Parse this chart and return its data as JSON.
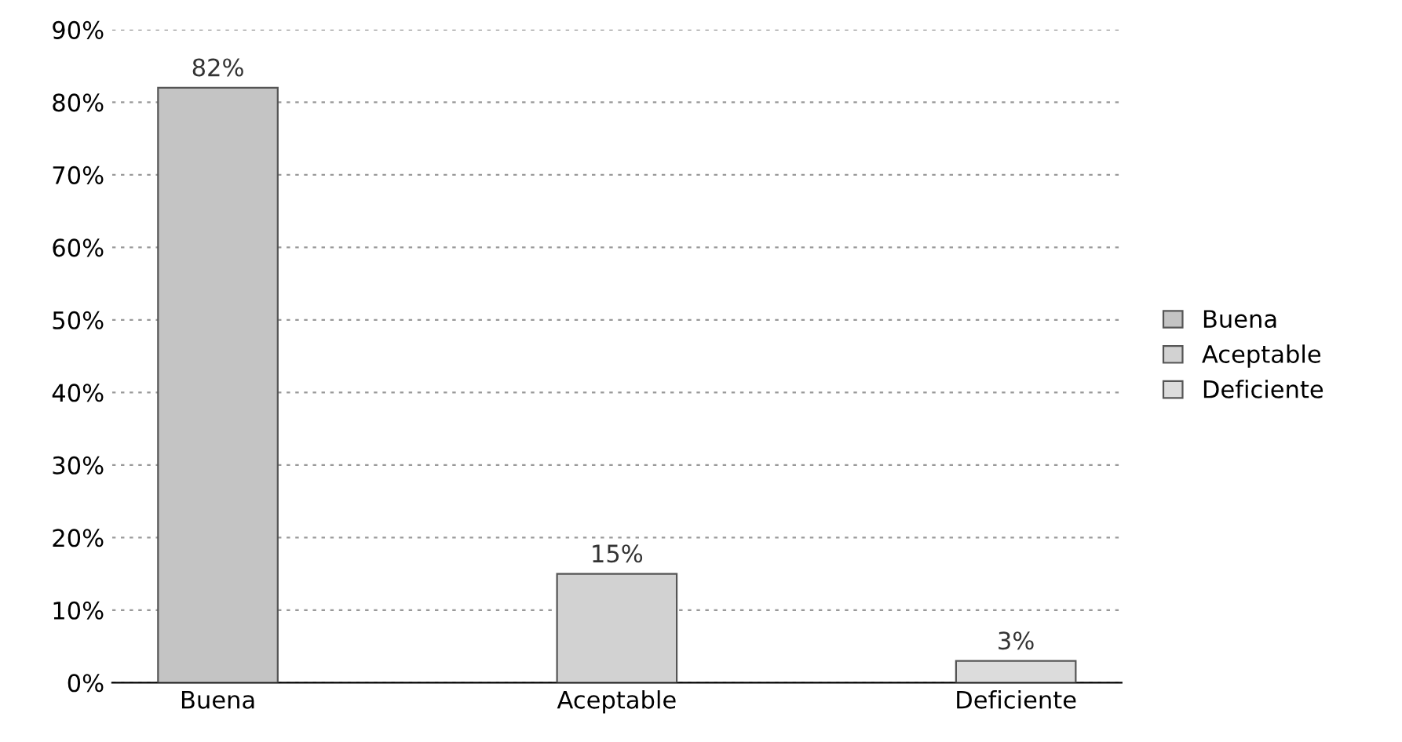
{
  "chart_data": {
    "type": "bar",
    "categories": [
      "Buena",
      "Aceptable",
      "Deficiente"
    ],
    "series": [
      {
        "name": "Buena",
        "color": "#c4c4c4",
        "values": [
          82,
          null,
          null
        ],
        "value_labels": [
          "82%",
          null,
          null
        ]
      },
      {
        "name": "Aceptable",
        "color": "#d2d2d2",
        "values": [
          null,
          15,
          null
        ],
        "value_labels": [
          null,
          "15%",
          null
        ]
      },
      {
        "name": "Deficiente",
        "color": "#dcdcdc",
        "values": [
          null,
          null,
          3
        ],
        "value_labels": [
          null,
          null,
          "3%"
        ]
      }
    ],
    "ylim": [
      0,
      90
    ],
    "yticks": [
      {
        "value": 0,
        "label": "0%"
      },
      {
        "value": 10,
        "label": "10%"
      },
      {
        "value": 20,
        "label": "20%"
      },
      {
        "value": 30,
        "label": "30%"
      },
      {
        "value": 40,
        "label": "40%"
      },
      {
        "value": 50,
        "label": "50%"
      },
      {
        "value": 60,
        "label": "60%"
      },
      {
        "value": 70,
        "label": "70%"
      },
      {
        "value": 80,
        "label": "80%"
      },
      {
        "value": 90,
        "label": "90%"
      }
    ],
    "grid": "y",
    "legend": "right"
  }
}
